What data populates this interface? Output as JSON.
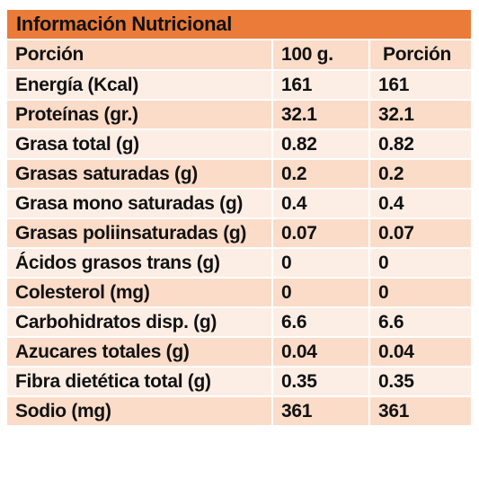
{
  "title": "Información Nutricional",
  "header": {
    "col1": "Porción",
    "col2": "100 g.",
    "col3": "Porción"
  },
  "rows": [
    {
      "name": "Energía (Kcal)",
      "v100": "161",
      "portion": "161"
    },
    {
      "name": "Proteínas (gr.)",
      "v100": "32.1",
      "portion": "32.1"
    },
    {
      "name": "Grasa total (g)",
      "v100": "0.82",
      "portion": "0.82"
    },
    {
      "name": "Grasas saturadas (g)",
      "v100": "0.2",
      "portion": "0.2"
    },
    {
      "name": "Grasa mono saturadas (g)",
      "v100": "0.4",
      "portion": "0.4"
    },
    {
      "name": "Grasas poliinsaturadas (g)",
      "v100": "0.07",
      "portion": "0.07"
    },
    {
      "name": "Ácidos grasos trans (g)",
      "v100": "0",
      "portion": "0"
    },
    {
      "name": "Colesterol (mg)",
      "v100": "0",
      "portion": "0"
    },
    {
      "name": "Carbohidratos disp. (g)",
      "v100": "6.6",
      "portion": "6.6"
    },
    {
      "name": "Azucares totales (g)",
      "v100": "0.04",
      "portion": "0.04"
    },
    {
      "name": "Fibra dietética total (g)",
      "v100": "0.35",
      "portion": "0.35"
    },
    {
      "name": "Sodio (mg)",
      "v100": "361",
      "portion": "361"
    }
  ],
  "colors": {
    "title_bg": "#ea7b38",
    "row_odd_bg": "#fbdcc8",
    "row_even_bg": "#fdeee5"
  }
}
